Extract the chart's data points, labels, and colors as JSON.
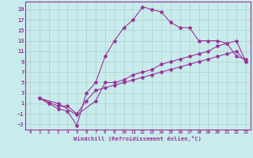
{
  "xlabel": "Windchill (Refroidissement éolien,°C)",
  "background_color": "#c8ecec",
  "grid_color": "#b0cccc",
  "line_color": "#993399",
  "spine_color": "#993399",
  "xlim": [
    -0.5,
    23.5
  ],
  "ylim": [
    -4,
    20.5
  ],
  "xticks": [
    0,
    1,
    2,
    3,
    4,
    5,
    6,
    7,
    8,
    9,
    10,
    11,
    12,
    13,
    14,
    15,
    16,
    17,
    18,
    19,
    20,
    21,
    22,
    23
  ],
  "yticks": [
    -3,
    -1,
    1,
    3,
    5,
    7,
    9,
    11,
    13,
    15,
    17,
    19
  ],
  "line1_x": [
    1,
    2,
    3,
    4,
    5,
    6,
    7,
    8,
    9,
    10,
    11,
    12,
    13,
    14,
    15,
    16,
    17,
    18,
    19,
    20,
    21,
    22,
    23
  ],
  "line1_y": [
    2,
    1,
    0,
    -0.5,
    -3.2,
    3,
    5,
    10,
    13,
    15.5,
    17,
    19.5,
    19,
    18.5,
    16.5,
    15.5,
    15.5,
    13,
    13,
    13,
    12.5,
    10,
    9.5
  ],
  "line2_x": [
    1,
    3,
    5,
    7,
    8,
    9,
    10,
    11,
    12,
    13,
    14,
    15,
    16,
    17,
    18,
    19,
    20,
    21,
    22,
    23
  ],
  "line2_y": [
    2,
    1,
    -1.2,
    1.5,
    5,
    5,
    5.5,
    6.5,
    7,
    7.5,
    8.5,
    9,
    9.5,
    10,
    10.5,
    11,
    12,
    12.5,
    13,
    9
  ],
  "line3_x": [
    1,
    2,
    3,
    4,
    5,
    6,
    7,
    8,
    9,
    10,
    11,
    12,
    13,
    14,
    15,
    16,
    17,
    18,
    19,
    20,
    21,
    22,
    23
  ],
  "line3_y": [
    2,
    1.2,
    0.5,
    0.5,
    -1,
    1.5,
    3.5,
    4,
    4.5,
    5,
    5.5,
    6,
    6.5,
    7,
    7.5,
    8,
    8.5,
    9,
    9.5,
    10,
    10.5,
    11,
    9
  ]
}
